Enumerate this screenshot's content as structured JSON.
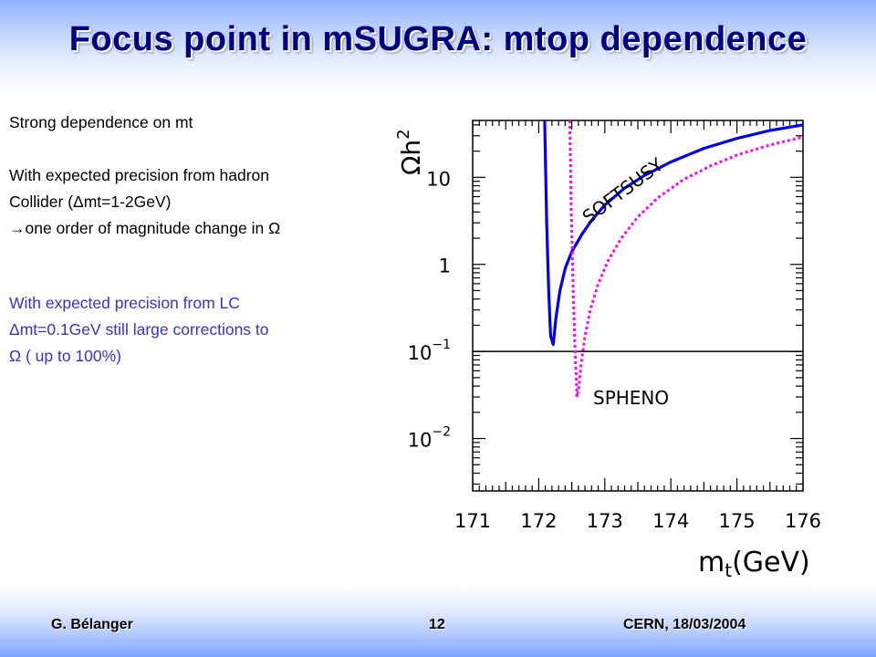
{
  "header": {
    "title": "Focus point in mSUGRA: mtop dependence"
  },
  "left_text": {
    "block1": [
      "Strong dependence on mt"
    ],
    "block2": [
      "With expected precision from hadron",
      "Collider (Δmt=1-2GeV)",
      "→one order of magnitude change in Ω"
    ],
    "block3": [
      "With expected precision from LC",
      "Δmt=0.1GeV still large corrections to",
      "Ω ( up to 100%)"
    ]
  },
  "footer": {
    "author": "G. Bélanger",
    "page_number": "12",
    "venue_date": "CERN, 18/03/2004"
  },
  "colors": {
    "title": "#000080",
    "highlight_text": "#3333cc",
    "softsusy_curve": "#0000ee",
    "spheno_curve": "#ff00ff"
  },
  "chart_data": {
    "type": "line",
    "xlabel": "m_t(GeV)",
    "ylabel": "Ωh²",
    "x_scale": "linear",
    "y_scale": "log",
    "xlim": [
      171,
      176
    ],
    "ylim": [
      0.0025,
      45
    ],
    "x_ticks": [
      171,
      172,
      173,
      174,
      175,
      176
    ],
    "y_ticks": [
      {
        "value": 0.01,
        "label": "10⁻²",
        "base": "10",
        "exp": "−2"
      },
      {
        "value": 0.1,
        "label": "10⁻¹",
        "base": "10",
        "exp": "−1"
      },
      {
        "value": 1,
        "label": "1",
        "base": "1",
        "exp": ""
      },
      {
        "value": 10,
        "label": "10",
        "base": "10",
        "exp": ""
      }
    ],
    "reference_line_y": 0.1,
    "series": [
      {
        "name": "SOFTSUSY",
        "color": "#0000ee",
        "style": "solid",
        "x": [
          172.09,
          172.12,
          172.15,
          172.18,
          172.22,
          172.26,
          172.32,
          172.4,
          172.5,
          172.65,
          172.8,
          173.0,
          173.3,
          173.6,
          174.0,
          174.5,
          175.0,
          175.5,
          176.0
        ],
        "y": [
          45,
          3.0,
          0.5,
          0.15,
          0.12,
          0.24,
          0.5,
          0.9,
          1.4,
          2.2,
          3.2,
          4.8,
          7.5,
          10.5,
          15,
          21.5,
          28,
          34.5,
          40
        ]
      },
      {
        "name": "SPHENO",
        "color": "#ff00ff",
        "style": "dotted",
        "x": [
          172.47,
          172.49,
          172.52,
          172.55,
          172.58,
          172.61,
          172.64,
          172.7,
          172.78,
          172.9,
          173.05,
          173.25,
          173.5,
          173.8,
          174.2,
          174.6,
          175.0,
          175.5,
          176.0
        ],
        "y": [
          45,
          5.0,
          0.6,
          0.1,
          0.03,
          0.04,
          0.07,
          0.15,
          0.3,
          0.6,
          1.1,
          2.0,
          3.5,
          5.8,
          9.5,
          13.5,
          18,
          23.5,
          29
        ]
      }
    ]
  }
}
